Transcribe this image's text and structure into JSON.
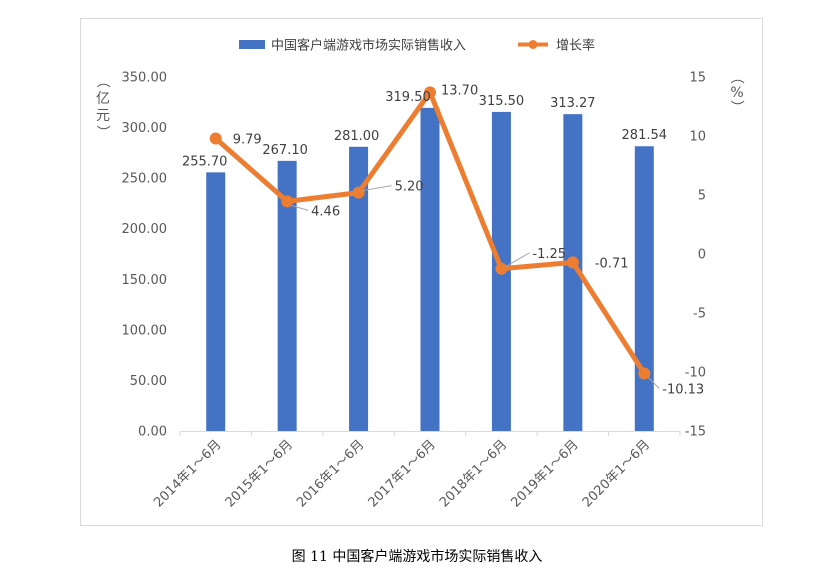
{
  "chart_data": {
    "type": "bar+line",
    "categories": [
      "2014年1～6月",
      "2015年1～6月",
      "2016年1～6月",
      "2017年1～6月",
      "2018年1～6月",
      "2019年1～6月",
      "2020年1～6月"
    ],
    "series": [
      {
        "name": "中国客户端游戏市场实际销售收入",
        "type": "bar",
        "axis": "left",
        "color": "#4472C4",
        "values": [
          255.7,
          267.1,
          281.0,
          319.5,
          315.5,
          313.27,
          281.54
        ],
        "labels": [
          "255.70",
          "267.10",
          "281.00",
          "319.50",
          "315.50",
          "313.27",
          "281.54"
        ]
      },
      {
        "name": "增长率",
        "type": "line",
        "axis": "right",
        "color": "#ED7D31",
        "values": [
          9.79,
          4.46,
          5.2,
          13.7,
          -1.25,
          -0.71,
          -10.13
        ],
        "labels": [
          "9.79",
          "4.46",
          "5.20",
          "13.70",
          "-1.25",
          "-0.71",
          "-10.13"
        ]
      }
    ],
    "y_left": {
      "label": "（亿元）",
      "ylim": [
        0,
        350
      ],
      "ticks": [
        0,
        50,
        100,
        150,
        200,
        250,
        300,
        350
      ],
      "tick_labels": [
        "0.00",
        "50.00",
        "100.00",
        "150.00",
        "200.00",
        "250.00",
        "300.00",
        "350.00"
      ]
    },
    "y_right": {
      "label": "（%）",
      "ylim": [
        -15,
        15
      ],
      "ticks": [
        -15,
        -10,
        -5,
        0,
        5,
        10,
        15
      ],
      "tick_labels": [
        "-15",
        "-10",
        "-5",
        "0",
        "5",
        "10",
        "15"
      ]
    },
    "legend_position": "top-center",
    "grid": false
  },
  "caption": "图 11 中国客户端游戏市场实际销售收入"
}
